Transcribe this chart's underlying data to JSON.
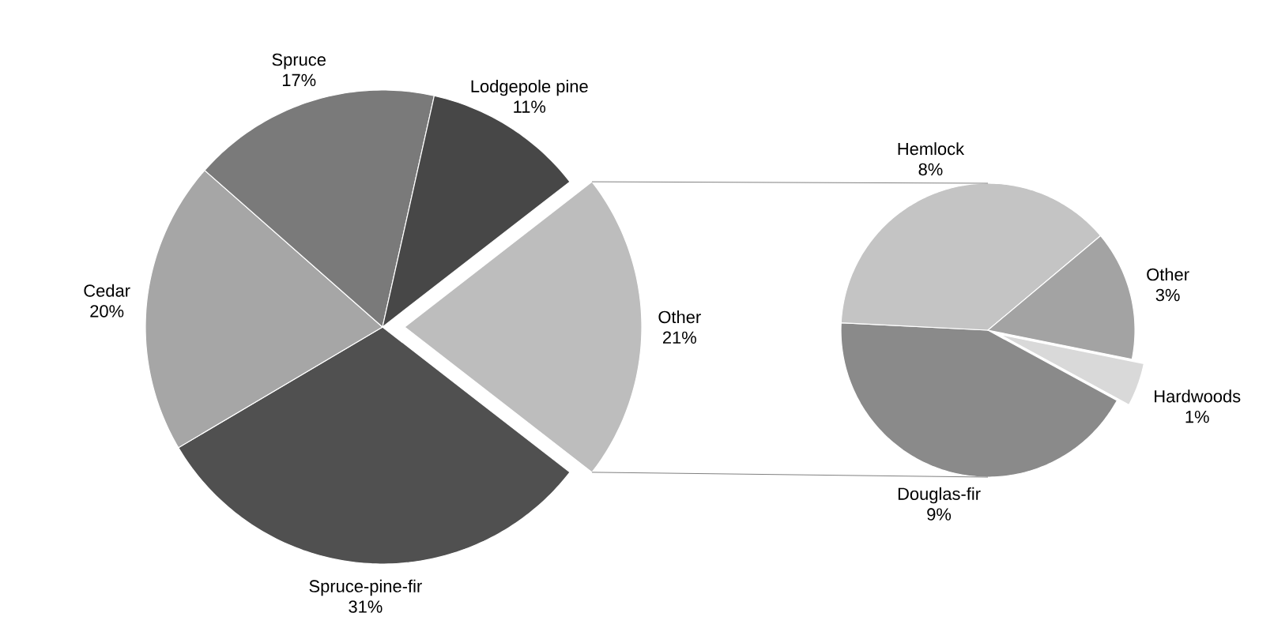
{
  "chart_data": [
    {
      "type": "pie",
      "categories": [
        "Other",
        "Spruce-pine-fir",
        "Cedar",
        "Spruce",
        "Lodgepole pine"
      ],
      "values": [
        21,
        31,
        20,
        17,
        11
      ],
      "colors": [
        "#bdbdbd",
        "#505050",
        "#a6a6a6",
        "#7a7a7a",
        "#474747"
      ],
      "value_labels": [
        "21%",
        "31%",
        "20%",
        "17%",
        "11%"
      ]
    },
    {
      "type": "pie",
      "categories": [
        "Hardwoods",
        "Douglas-fir",
        "Hemlock",
        "Other"
      ],
      "values": [
        1,
        9,
        8,
        3
      ],
      "colors": [
        "#d9d9d9",
        "#8a8a8a",
        "#c4c4c4",
        "#a3a3a3"
      ],
      "value_labels": [
        "1%",
        "9%",
        "8%",
        "3%"
      ]
    }
  ]
}
